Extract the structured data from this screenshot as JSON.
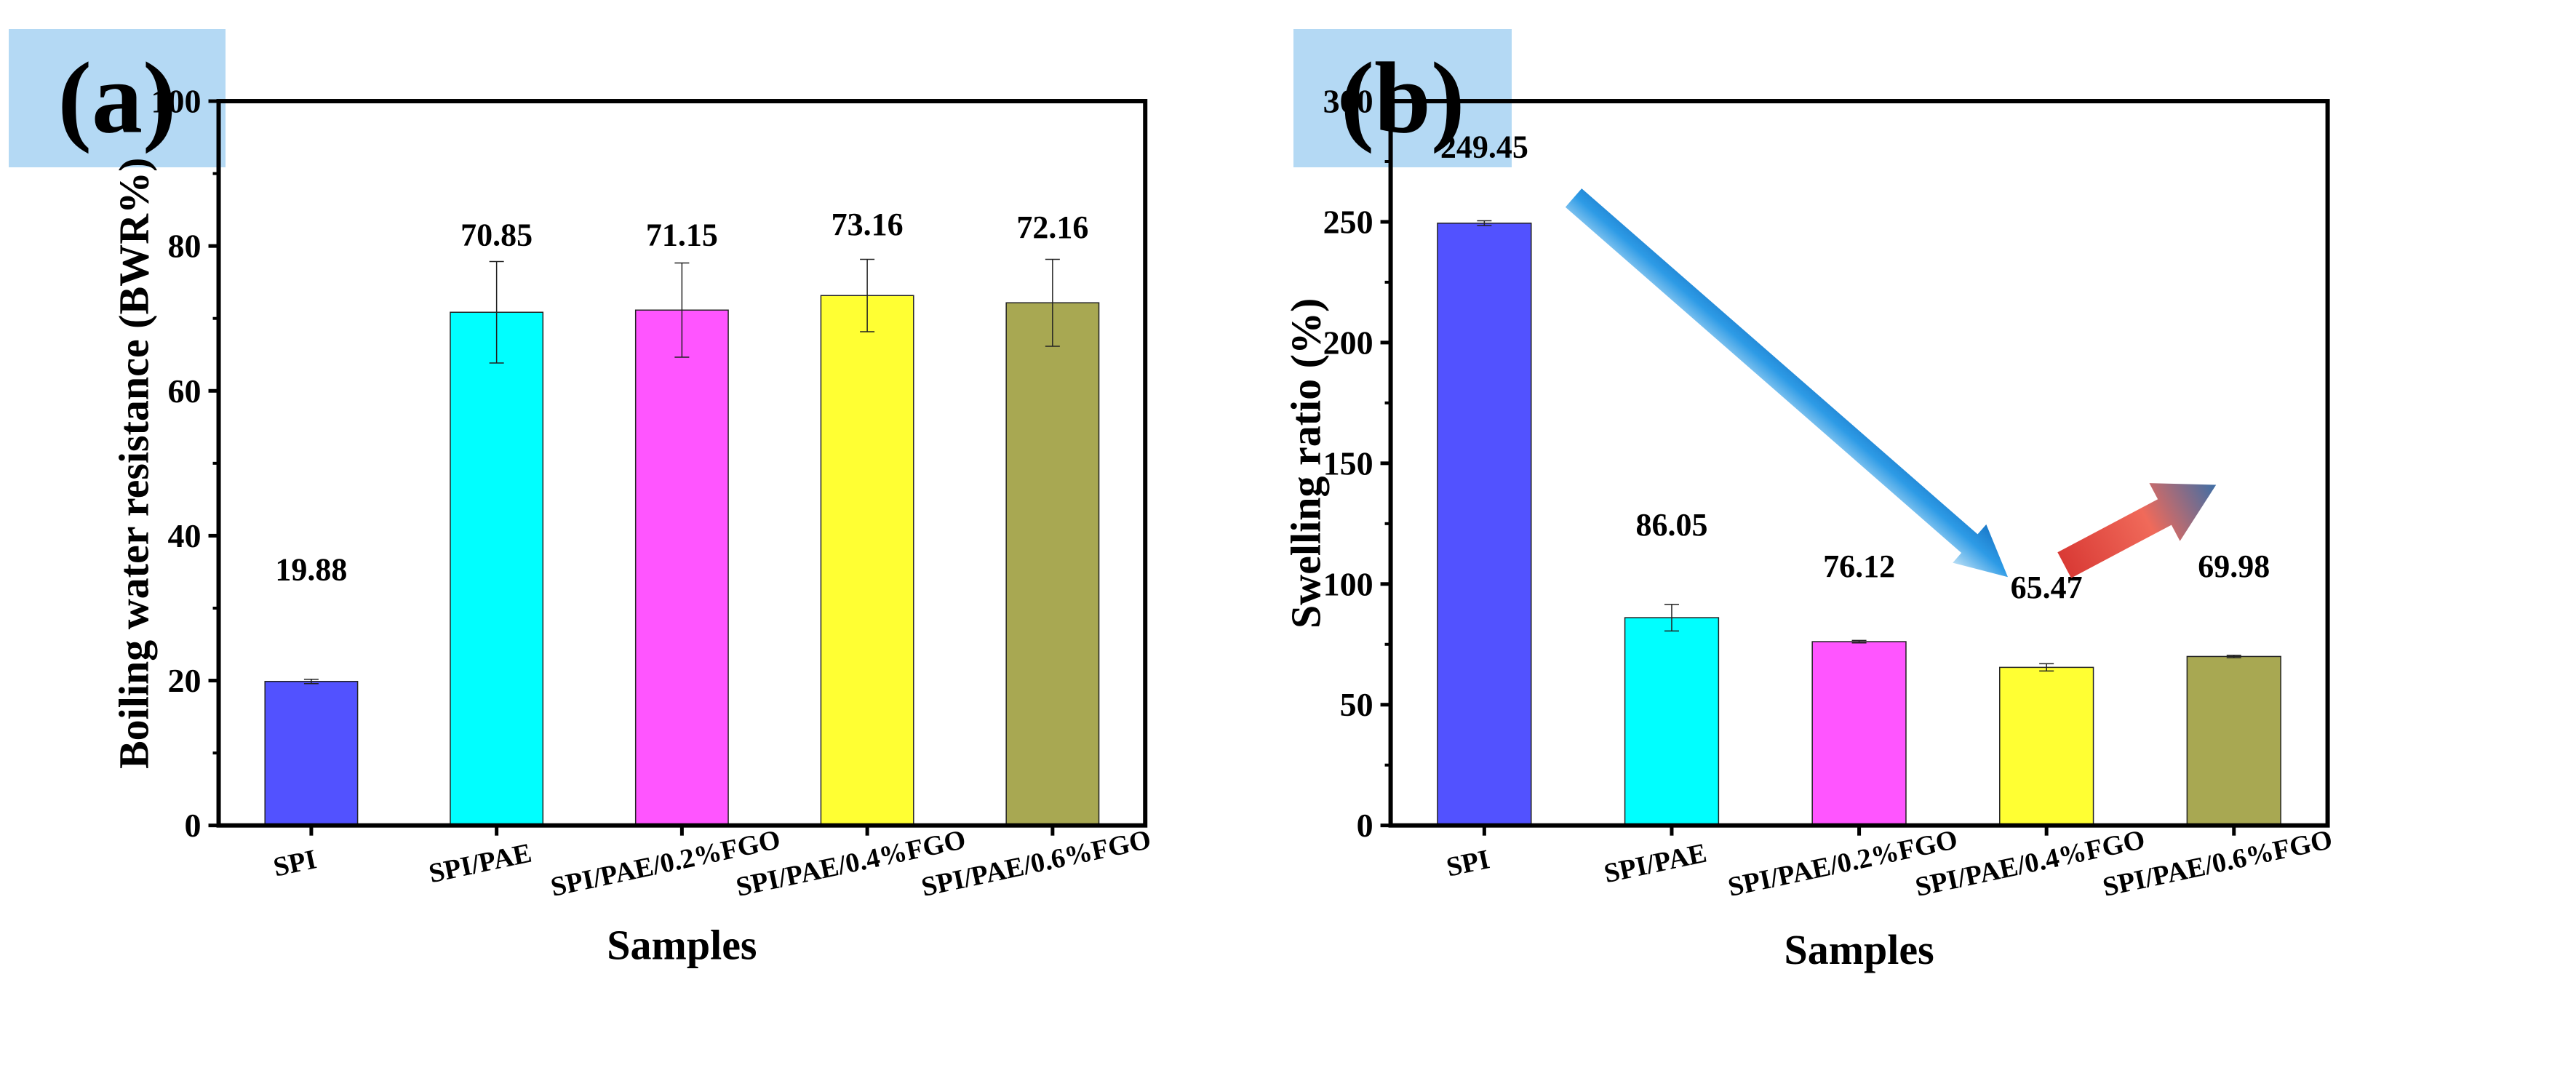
{
  "chart_data": [
    {
      "panel_label": "(a)",
      "type": "bar",
      "categories": [
        "SPI",
        "SPI/PAE",
        "SPI/PAE/0.2%FGO",
        "SPI/PAE/0.4%FGO",
        "SPI/PAE/0.6%FGO"
      ],
      "values": [
        19.88,
        70.85,
        71.15,
        73.16,
        72.16
      ],
      "value_labels": [
        "19.88",
        "70.85",
        "71.15",
        "73.16",
        "72.16"
      ],
      "errors": [
        0.3,
        7.0,
        6.5,
        5.0,
        6.0
      ],
      "colors": [
        "#5252ff",
        "#00ffff",
        "#ff55ff",
        "#ffff33",
        "#a8a852"
      ],
      "xlabel": "Samples",
      "ylabel": "Boiling water resistance (BWR%)",
      "ylim": [
        0,
        100
      ],
      "yticks": [
        "0",
        "20",
        "40",
        "60",
        "80",
        "100"
      ],
      "ytick_values": [
        0,
        20,
        40,
        60,
        80,
        100
      ]
    },
    {
      "panel_label": "(b)",
      "type": "bar",
      "categories": [
        "SPI",
        "SPI/PAE",
        "SPI/PAE/0.2%FGO",
        "SPI/PAE/0.4%FGO",
        "SPI/PAE/0.6%FGO"
      ],
      "values": [
        249.45,
        86.05,
        76.12,
        65.47,
        69.98
      ],
      "value_labels": [
        "249.45",
        "86.05",
        "76.12",
        "65.47",
        "69.98"
      ],
      "errors": [
        1.0,
        5.5,
        0.5,
        1.5,
        0.5
      ],
      "colors": [
        "#5252ff",
        "#00ffff",
        "#ff55ff",
        "#ffff33",
        "#a8a852"
      ],
      "xlabel": "Samples",
      "ylabel": "Swelling ratio (%)",
      "ylim": [
        0,
        300
      ],
      "yticks": [
        "0",
        "50",
        "100",
        "150",
        "200",
        "250",
        "300"
      ],
      "ytick_values": [
        0,
        50,
        100,
        150,
        200,
        250,
        300
      ],
      "annotations": [
        "decrease-arrow",
        "increase-arrow"
      ]
    }
  ]
}
